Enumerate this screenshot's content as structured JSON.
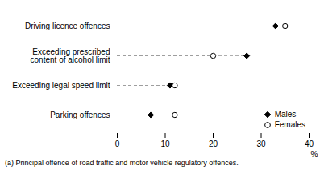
{
  "chart_data": {
    "type": "scatter",
    "categories": [
      "Parking offences",
      "Exceeding legal speed limit",
      "Exceeding prescribed\ncontent of alcohol limit",
      "Driving licence offences"
    ],
    "series": [
      {
        "name": "Males",
        "color": "#000000",
        "marker": "diamond",
        "values": [
          7,
          11,
          27,
          33
        ]
      },
      {
        "name": "Females",
        "color": "#000000",
        "marker": "circle",
        "values": [
          12,
          12,
          20,
          35
        ]
      }
    ],
    "color": "#999999",
    "line_style": "dashed",
    "xlabel": "%",
    "xlim": [
      0,
      40
    ],
    "xticks": [
      0,
      10,
      20,
      30,
      40
    ],
    "legend": "lower right",
    "footnote": "(a) Principal offence of road traffic and motor vehicle regulatory offences."
  }
}
